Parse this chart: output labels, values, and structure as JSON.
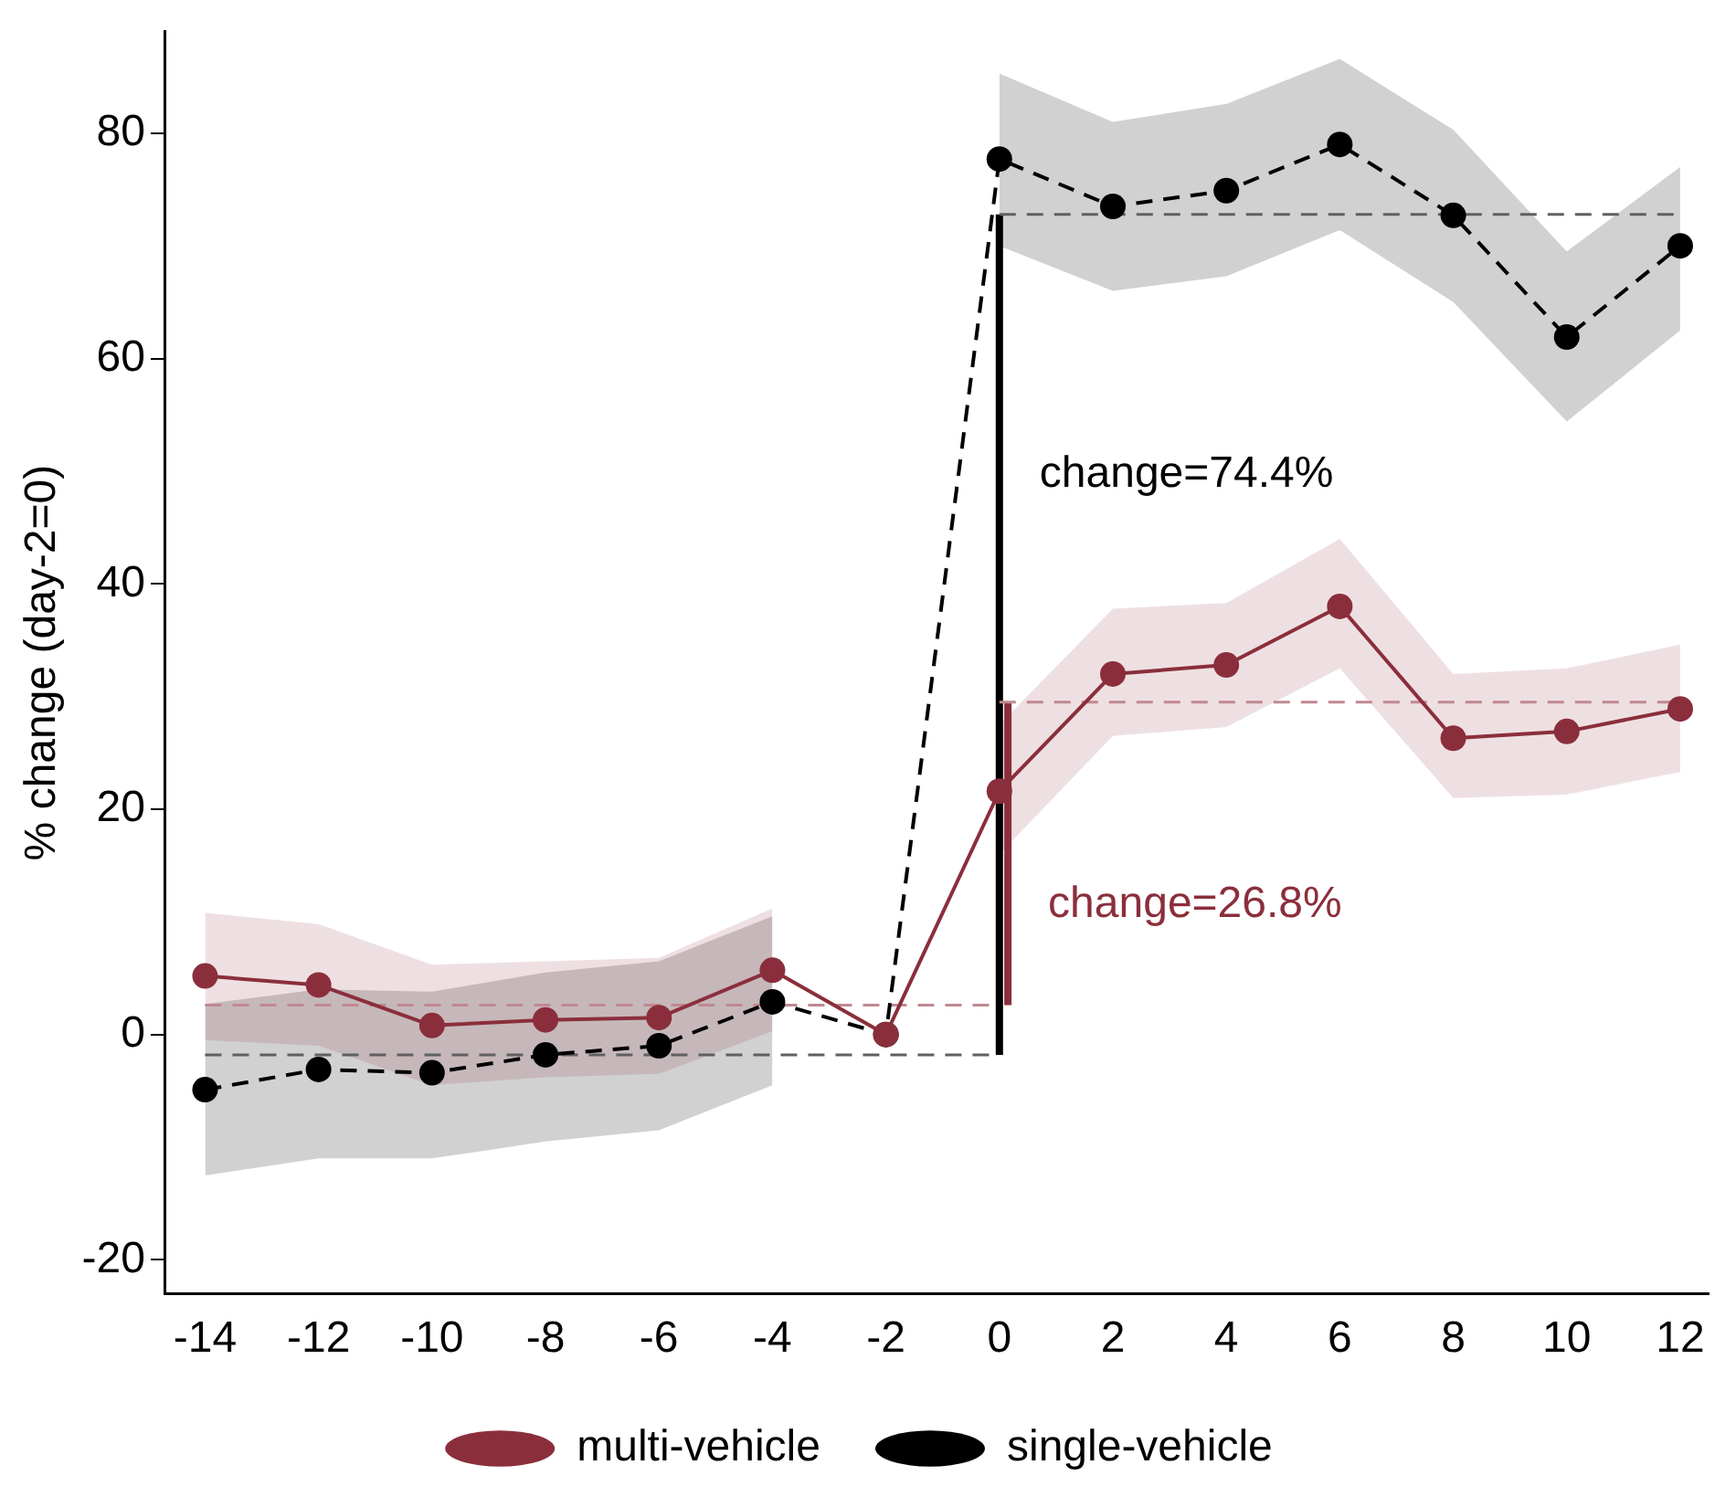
{
  "chart_data": {
    "type": "line",
    "ylabel": "% change (day-2=0)",
    "x": [
      -14,
      -12,
      -10,
      -8,
      -6,
      -4,
      -2,
      0,
      2,
      4,
      6,
      8,
      10,
      12
    ],
    "xlim": [
      -14.7,
      12.5
    ],
    "xticks": [
      -14,
      -12,
      -10,
      -8,
      -6,
      -4,
      -2,
      0,
      2,
      4,
      6,
      8,
      10,
      12
    ],
    "ylim": [
      -23,
      89
    ],
    "yticks": [
      -20,
      0,
      20,
      40,
      60,
      80
    ],
    "grid": false,
    "legend": "bottom",
    "marker": "circle",
    "series": [
      {
        "name": "multi-vehicle",
        "color": "#8b2e3c",
        "line_style": "solid",
        "values": [
          5.2,
          4.4,
          0.8,
          1.3,
          1.5,
          5.7,
          0,
          21.6,
          32.0,
          32.8,
          38.0,
          26.3,
          26.9,
          28.9
        ],
        "lower": [
          -0.5,
          -1,
          -4.5,
          -3.8,
          -3.5,
          0.3,
          null,
          16,
          26.5,
          27.3,
          32.5,
          21,
          21.3,
          23.3
        ],
        "upper": [
          10.8,
          9.8,
          6.2,
          6.5,
          6.8,
          11.2,
          null,
          27.5,
          37.8,
          38.3,
          44,
          32,
          32.5,
          34.6
        ]
      },
      {
        "name": "single-vehicle",
        "color": "#000000",
        "line_style": "dashed",
        "values": [
          -4.9,
          -3.1,
          -3.4,
          -1.8,
          -1.0,
          2.9,
          0,
          77.7,
          73.5,
          74.9,
          79.0,
          72.7,
          61.9,
          70.0
        ],
        "lower": [
          -12.5,
          -11,
          -11,
          -9.5,
          -8.5,
          -4.5,
          null,
          70,
          66,
          67.3,
          71.4,
          65,
          54.4,
          62.5
        ],
        "upper": [
          2.7,
          4.0,
          3.8,
          5.5,
          6.5,
          10.5,
          null,
          85.3,
          81,
          82.6,
          86.6,
          80.3,
          69.5,
          77
        ]
      },
      {
        "type": "line",
        "x": [
          -14,
          0
        ],
        "values": [
          2.6,
          2.6
        ],
        "color": "#c08890",
        "line_style": "dashed",
        "marker": "none"
      },
      {
        "type": "line",
        "x": [
          0,
          12
        ],
        "values": [
          29.5,
          29.5
        ],
        "color": "#c08890",
        "line_style": "dashed",
        "marker": "none"
      },
      {
        "type": "line",
        "x": [
          -14,
          0
        ],
        "values": [
          -1.8,
          -1.8
        ],
        "color": "#606060",
        "line_style": "dashed",
        "marker": "none"
      },
      {
        "type": "line",
        "x": [
          0,
          12
        ],
        "values": [
          72.8,
          72.8
        ],
        "color": "#606060",
        "line_style": "dashed",
        "marker": "none"
      },
      {
        "type": "line",
        "x": [
          0,
          0
        ],
        "values": [
          -1.8,
          72.8
        ],
        "color": "#000000",
        "line_style": "solid",
        "marker": "none"
      },
      {
        "type": "line",
        "x": [
          0.15,
          0.15
        ],
        "values": [
          2.6,
          29.5
        ],
        "color": "#8b2e3c",
        "line_style": "solid",
        "marker": "none"
      }
    ],
    "annotations": [
      "change=74.4%",
      "change=26.8%"
    ]
  }
}
